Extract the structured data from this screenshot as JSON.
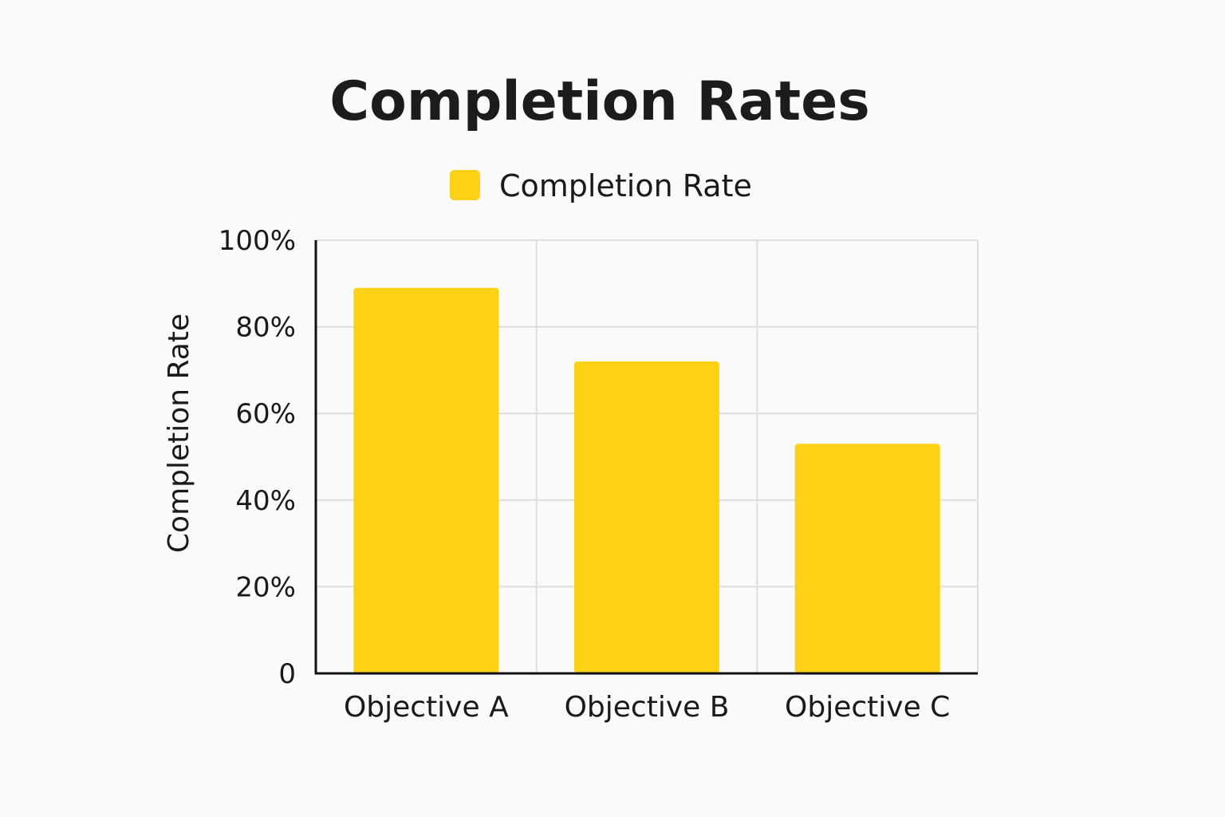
{
  "chart_data": {
    "type": "bar",
    "title": "Completion Rates",
    "categories": [
      "Objective A",
      "Objective B",
      "Objective C"
    ],
    "series": [
      {
        "name": "Completion Rate",
        "values": [
          89,
          72,
          53
        ],
        "color": "#fcd116"
      }
    ],
    "xlabel": "",
    "ylabel": "Completion Rate",
    "ylim": [
      0,
      100
    ],
    "yticks": [
      0,
      20,
      40,
      60,
      80,
      100
    ],
    "ytick_labels": [
      "0",
      "20%",
      "40%",
      "60%",
      "80%",
      "100%"
    ],
    "grid": true,
    "legend_position": "top-center"
  }
}
